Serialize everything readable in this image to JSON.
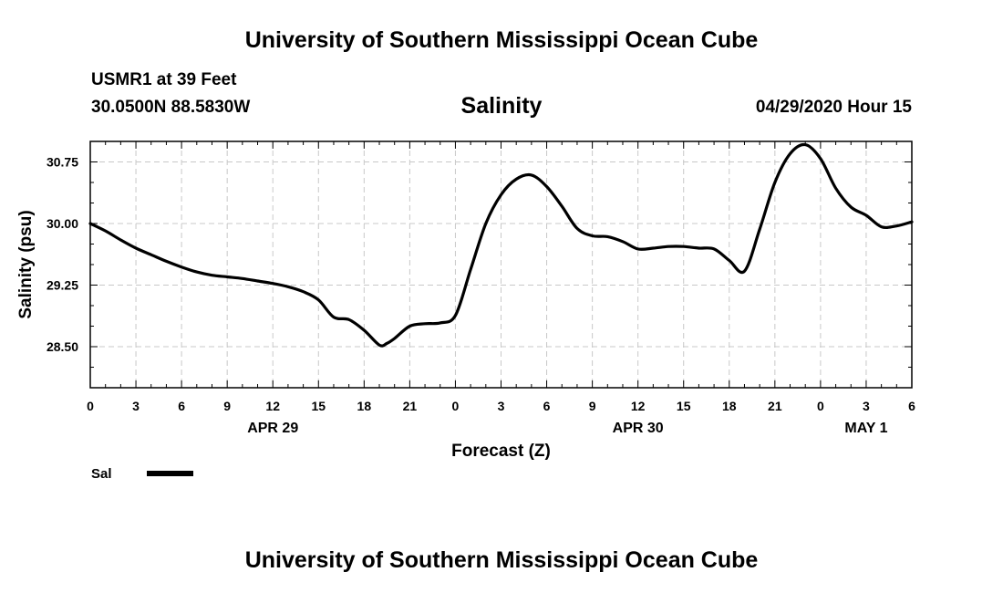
{
  "header": {
    "top_title": "University of Southern Mississippi Ocean Cube",
    "station": "USMR1 at 39 Feet",
    "coords": "30.0500N 88.5830W",
    "run_time": "04/29/2020 Hour 15",
    "bottom_title": "University of Southern Mississippi Ocean Cube"
  },
  "chart_data": {
    "type": "line",
    "title": "Salinity",
    "xlabel": "Forecast (Z)",
    "ylabel": "Salinity (psu)",
    "ylim": [
      28.0,
      31.0
    ],
    "xlim": [
      0,
      54
    ],
    "grid": true,
    "x_unit": "hours from 04/29/2020 00Z",
    "x_ticks": [
      0,
      3,
      6,
      9,
      12,
      15,
      18,
      21,
      24,
      27,
      30,
      33,
      36,
      39,
      42,
      45,
      48,
      51,
      54
    ],
    "x_tick_labels": [
      "0",
      "3",
      "6",
      "9",
      "12",
      "15",
      "18",
      "21",
      "0",
      "3",
      "6",
      "9",
      "12",
      "15",
      "18",
      "21",
      "0",
      "3",
      "6"
    ],
    "date_labels": [
      {
        "label": "APR 29",
        "x": 12
      },
      {
        "label": "APR 30",
        "x": 36
      },
      {
        "label": "MAY 1",
        "x": 51
      }
    ],
    "y_ticks": [
      28.5,
      29.25,
      30.0,
      30.75
    ],
    "y_tick_labels": [
      "28.50",
      "29.25",
      "30.00",
      "30.75"
    ],
    "legend": {
      "label": "Sal",
      "position": "bottom-left"
    },
    "series": [
      {
        "name": "Sal",
        "color": "#000000",
        "x": [
          0,
          1,
          2,
          3,
          4,
          5,
          6,
          7,
          8,
          9,
          10,
          11,
          12,
          13,
          14,
          15,
          16,
          17,
          18,
          19,
          19.5,
          20,
          21,
          22,
          23,
          24,
          25,
          26,
          27,
          28,
          29,
          30,
          31,
          32,
          33,
          34,
          35,
          36,
          37,
          38,
          39,
          40,
          41,
          42,
          43,
          44,
          45,
          46,
          47,
          48,
          49,
          50,
          51,
          52,
          53,
          54
        ],
        "y": [
          30.0,
          29.91,
          29.8,
          29.7,
          29.62,
          29.54,
          29.47,
          29.41,
          29.37,
          29.35,
          29.33,
          29.3,
          29.27,
          29.23,
          29.17,
          29.07,
          28.86,
          28.83,
          28.7,
          28.52,
          28.54,
          28.6,
          28.75,
          28.78,
          28.79,
          28.88,
          29.44,
          30.0,
          30.35,
          30.54,
          30.59,
          30.45,
          30.21,
          29.94,
          29.85,
          29.84,
          29.78,
          29.69,
          29.7,
          29.72,
          29.72,
          29.7,
          29.69,
          29.55,
          29.42,
          29.93,
          30.5,
          30.85,
          30.96,
          30.79,
          30.43,
          30.2,
          30.1,
          29.96,
          29.97,
          30.02
        ]
      }
    ]
  }
}
